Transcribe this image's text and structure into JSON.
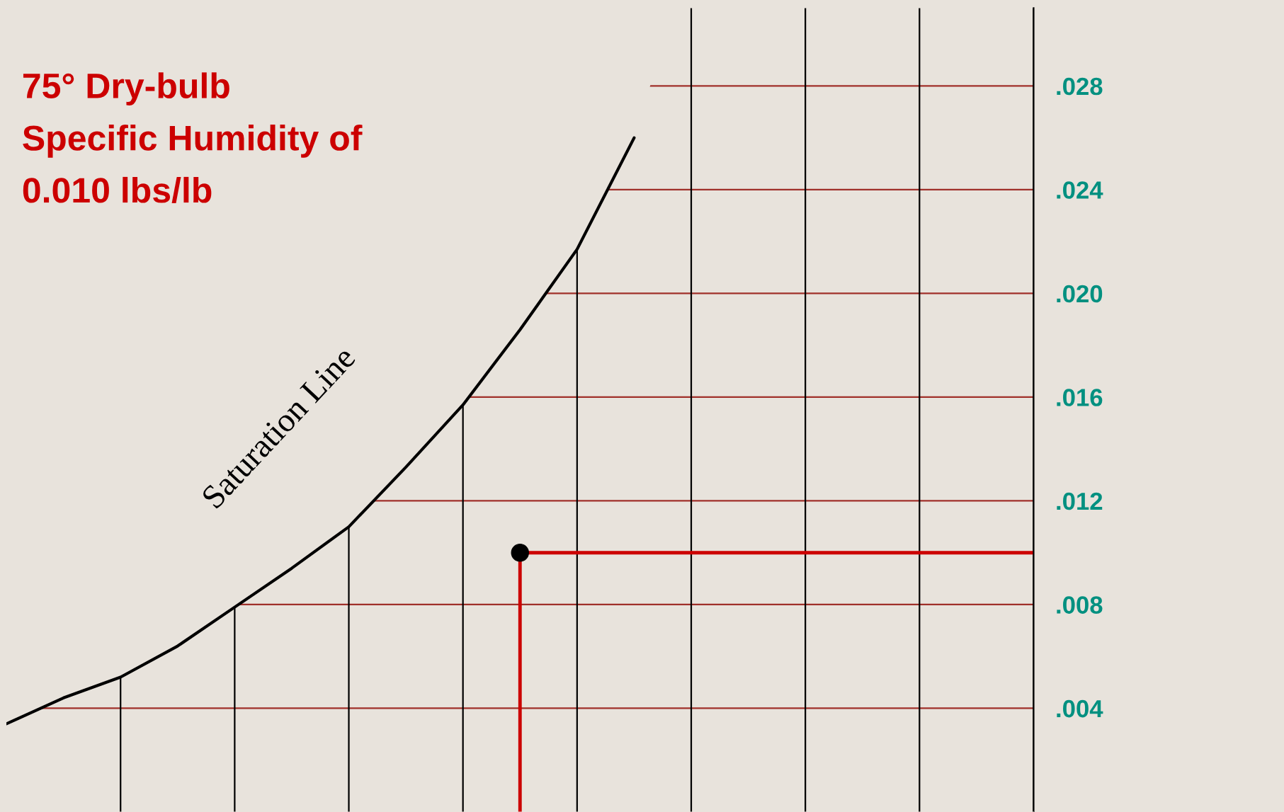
{
  "chart_data": {
    "type": "line",
    "categories": [
      null,
      null,
      null,
      null,
      null,
      null,
      null,
      null,
      null,
      null,
      null,
      null,
      null,
      null,
      null,
      null,
      null,
      null,
      null
    ],
    "series": [
      {
        "name": "Saturation Line",
        "color": "#000000",
        "values": [
          0.0034,
          0.0044,
          0.0052,
          0.0064,
          0.0079,
          0.0094,
          0.011,
          0.0133,
          0.0157,
          0.0186,
          0.0217,
          0.026,
          null,
          null,
          null,
          null,
          null,
          null,
          null
        ]
      },
      {
        "type": "scatter",
        "color": "#000000",
        "marker": "circle",
        "values": [
          null,
          null,
          null,
          null,
          null,
          null,
          null,
          null,
          null,
          0.01,
          null,
          null,
          null,
          null,
          null,
          null,
          null,
          null,
          null
        ]
      }
    ],
    "ref_lines": [
      {
        "axis": "y",
        "value": 0.01,
        "color": "#cc0000"
      }
    ],
    "annotations": [
      "75° Dry-bulb\nSpecific Humidity of\n0.010 lbs/lb"
    ],
    "ylim": [
      0,
      0.031
    ],
    "yticks": [
      {
        "value": 0.004,
        "label": ".004"
      },
      {
        "value": 0.008,
        "label": ".008"
      },
      {
        "value": 0.012,
        "label": ".012"
      },
      {
        "value": 0.016,
        "label": ".016"
      },
      {
        "value": 0.02,
        "label": ".020"
      },
      {
        "value": 0.024,
        "label": ".024"
      },
      {
        "value": 0.028,
        "label": ".028"
      }
    ],
    "tick_labels": "y",
    "grid": true
  }
}
